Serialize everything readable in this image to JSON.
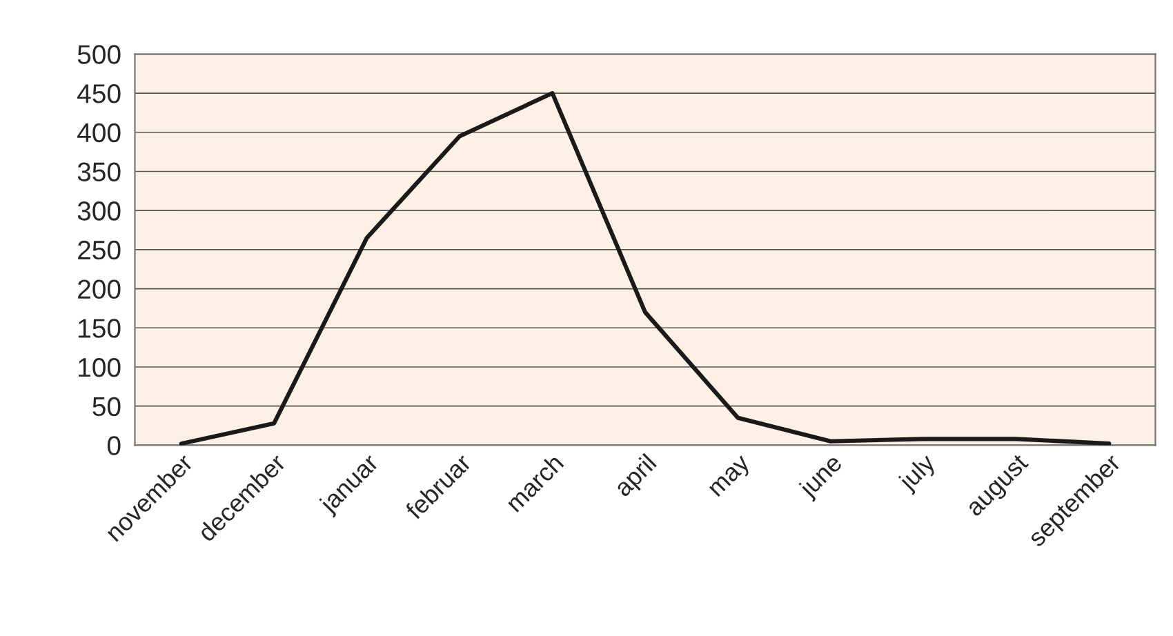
{
  "chart_data": {
    "type": "line",
    "categories": [
      "november",
      "december",
      "januar",
      "februar",
      "march",
      "april",
      "may",
      "june",
      "july",
      "august",
      "september"
    ],
    "series": [
      {
        "color": "#1a1a1a",
        "values": [
          2,
          28,
          265,
          395,
          450,
          170,
          35,
          5,
          8,
          8,
          2
        ]
      }
    ],
    "ylim": [
      0,
      500
    ],
    "yticks": [
      0,
      50,
      100,
      150,
      200,
      250,
      300,
      350,
      400,
      450,
      500
    ],
    "grid": "y",
    "legend": false,
    "marker": "none",
    "line_style": "solid"
  }
}
